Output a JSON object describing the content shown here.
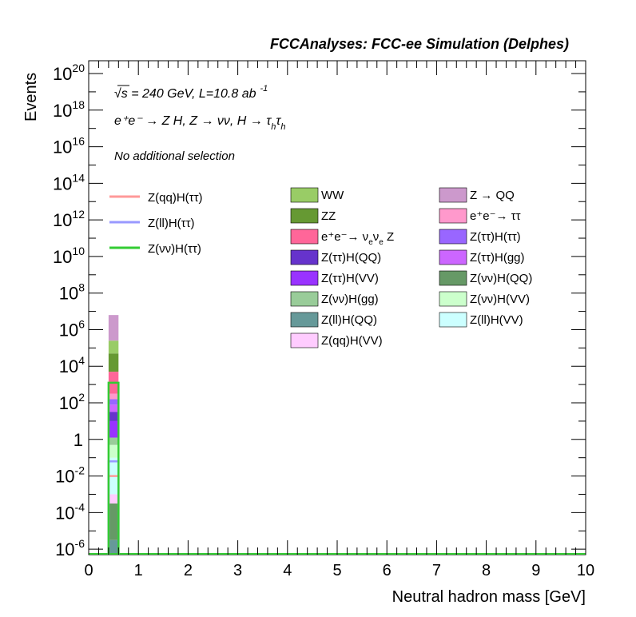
{
  "chart_data": {
    "type": "bar",
    "title": "FCCAnalyses: FCC-ee Simulation (Delphes)",
    "xlabel": "Neutral hadron mass [GeV]",
    "ylabel": "Events",
    "xlim": [
      0,
      10
    ],
    "ylim_log10": [
      -6.3,
      20.7
    ],
    "y_scale": "log",
    "x_ticks": [
      "0",
      "1",
      "2",
      "3",
      "4",
      "5",
      "6",
      "7",
      "8",
      "9",
      "10"
    ],
    "y_ticks": [
      {
        "base": "10",
        "exp": "20",
        "log": 20
      },
      {
        "base": "10",
        "exp": "18",
        "log": 18
      },
      {
        "base": "10",
        "exp": "16",
        "log": 16
      },
      {
        "base": "10",
        "exp": "14",
        "log": 14
      },
      {
        "base": "10",
        "exp": "12",
        "log": 12
      },
      {
        "base": "10",
        "exp": "10",
        "log": 10
      },
      {
        "base": "10",
        "exp": "8",
        "log": 8
      },
      {
        "base": "10",
        "exp": "6",
        "log": 6
      },
      {
        "base": "10",
        "exp": "4",
        "log": 4
      },
      {
        "base": "10",
        "exp": "2",
        "log": 2
      },
      {
        "base": "1",
        "exp": "",
        "log": 0
      },
      {
        "base": "10",
        "exp": "-2",
        "log": -2
      },
      {
        "base": "10",
        "exp": "-4",
        "log": -4
      },
      {
        "base": "10",
        "exp": "-6",
        "log": -6
      }
    ],
    "annotations": {
      "energy_line": "√s = 240 GeV, L=10.8 ab",
      "energy_sup": "-1",
      "process": "e⁺e⁻ → Z H, Z → νν, H → τ",
      "process_sub1": "h",
      "process_tau": "τ",
      "process_sub2": "h",
      "selection": "No additional selection"
    },
    "bin": {
      "x_low": 0.4,
      "x_high": 0.6
    },
    "stack": [
      {
        "name": "Z(ll)H(QQ)",
        "color": "#669999",
        "top_log10": -5.5
      },
      {
        "name": "Z(νν)H(QQ)",
        "color": "#669966",
        "top_log10": -3.5
      },
      {
        "name": "Z(qq)H(VV)",
        "color": "#ffccff",
        "top_log10": -3.0
      },
      {
        "name": "Z(ll)H(VV)",
        "color": "#ccffff",
        "top_log10": -1.0
      },
      {
        "name": "Z(νν)H(VV)",
        "color": "#ccffcc",
        "top_log10": -0.3
      },
      {
        "name": "Z(νν)H(gg)",
        "color": "#99cc99",
        "top_log10": 0.1
      },
      {
        "name": "Z(ττ)H(VV)",
        "color": "#9933ff",
        "top_log10": 1.0
      },
      {
        "name": "Z(ττ)H(QQ)",
        "color": "#6633cc",
        "top_log10": 1.5
      },
      {
        "name": "Z(ττ)H(gg)",
        "color": "#cc66ff",
        "top_log10": 1.9
      },
      {
        "name": "Z(ττ)H(ττ)",
        "color": "#9966ff",
        "top_log10": 2.2
      },
      {
        "name": "e⁺e⁻ → ττ",
        "color": "#ff99cc",
        "top_log10": 2.5
      },
      {
        "name": "e⁺e⁻→ νeνe Z",
        "color": "#ff6699",
        "top_log10": 3.7
      },
      {
        "name": "ZZ",
        "color": "#669933",
        "top_log10": 4.7
      },
      {
        "name": "WW",
        "color": "#99cc66",
        "top_log10": 5.4
      },
      {
        "name": "Z → QQ",
        "color": "#cc99cc",
        "top_log10": 6.8
      }
    ],
    "signal_lines": [
      {
        "name": "Z(qq)H(ττ)",
        "color": "#ff9999",
        "value_log10": -2.0
      },
      {
        "name": "Z(ll)H(ττ)",
        "color": "#9999ff",
        "value_log10": -1.2
      },
      {
        "name": "Z(νν)H(ττ)",
        "color": "#33cc33",
        "value_log10": 3.1
      }
    ],
    "legend_left": [
      {
        "name": "Z(qq)H(ττ)",
        "color": "#ff9999"
      },
      {
        "name": "Z(ll)H(ττ)",
        "color": "#9999ff"
      },
      {
        "name": "Z(νν)H(ττ)",
        "color": "#33cc33"
      }
    ],
    "legend_col1": [
      {
        "name": "WW",
        "color": "#99cc66"
      },
      {
        "name": "ZZ",
        "color": "#669933"
      },
      {
        "name": "e⁺e⁻→ ν",
        "sub": "e",
        "mid": "ν",
        "sub2": "e",
        "tail": " Z",
        "color": "#ff6699"
      },
      {
        "name": "Z(ττ)H(QQ)",
        "color": "#6633cc"
      },
      {
        "name": "Z(ττ)H(VV)",
        "color": "#9933ff"
      },
      {
        "name": "Z(νν)H(gg)",
        "color": "#99cc99"
      },
      {
        "name": "Z(ll)H(QQ)",
        "color": "#669999"
      },
      {
        "name": "Z(qq)H(VV)",
        "color": "#ffccff"
      }
    ],
    "legend_col2": [
      {
        "name": "Z → QQ",
        "color": "#cc99cc"
      },
      {
        "name": "e⁺e⁻→ ττ",
        "color": "#ff99cc"
      },
      {
        "name": "Z(ττ)H(ττ)",
        "color": "#9966ff"
      },
      {
        "name": "Z(ττ)H(gg)",
        "color": "#cc66ff"
      },
      {
        "name": "Z(νν)H(QQ)",
        "color": "#669966"
      },
      {
        "name": "Z(νν)H(VV)",
        "color": "#ccffcc"
      },
      {
        "name": "Z(ll)H(VV)",
        "color": "#ccffff"
      }
    ]
  }
}
